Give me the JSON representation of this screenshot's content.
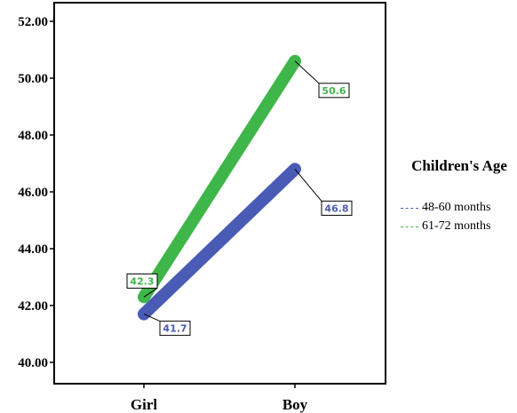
{
  "chart_data": {
    "type": "line",
    "categories": [
      "Girl",
      "Boy"
    ],
    "yticks": [
      "40.00",
      "42.00",
      "44.00",
      "46.00",
      "48.00",
      "50.00",
      "52.00"
    ],
    "ylim": [
      39.6,
      52.4
    ],
    "grid": false,
    "legend_title": "Children's Age",
    "legend_position": "right",
    "series": [
      {
        "name": "48-60 months",
        "values": [
          41.7,
          46.8
        ],
        "labels": [
          "41.7",
          "46.8"
        ],
        "color": "#4a5bb5"
      },
      {
        "name": "61-72 months",
        "values": [
          42.3,
          50.6
        ],
        "labels": [
          "42.3",
          "50.6"
        ],
        "color": "#3fb64a"
      }
    ]
  }
}
